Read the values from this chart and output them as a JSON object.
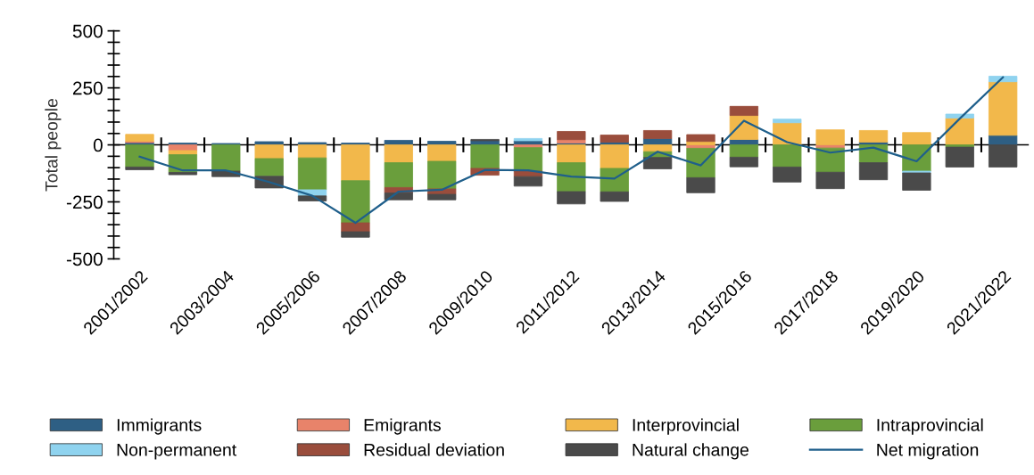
{
  "chart_data": {
    "type": "bar",
    "stacked": true,
    "ylabel": "Total people",
    "categories": [
      "2001/2002",
      null,
      "2003/2004",
      null,
      "2005/2006",
      null,
      "2007/2008",
      null,
      "2009/2010",
      null,
      "2011/2012",
      null,
      "2013/2014",
      null,
      "2015/2016",
      null,
      "2017/2018",
      null,
      "2019/2020",
      null,
      "2021/2022"
    ],
    "series": [
      {
        "name": "Immigrants",
        "color": "#2e5f84",
        "values": [
          10,
          8,
          6,
          14,
          10,
          8,
          20,
          16,
          18,
          18,
          8,
          12,
          28,
          0,
          24,
          0,
          0,
          12,
          0,
          0,
          42
        ]
      },
      {
        "name": "Emigrants",
        "color": "#e8836a",
        "values": [
          6,
          -25,
          0,
          0,
          0,
          0,
          0,
          0,
          0,
          -12,
          15,
          0,
          0,
          -15,
          0,
          0,
          -14,
          0,
          0,
          0,
          0
        ]
      },
      {
        "name": "Interprovincial",
        "color": "#f2b84b",
        "values": [
          30,
          -18,
          0,
          -60,
          -57,
          -157,
          -78,
          -72,
          0,
          0,
          -78,
          -103,
          -30,
          15,
          105,
          97,
          66,
          51,
          54,
          118,
          235
        ]
      },
      {
        "name": "Intraprovincial",
        "color": "#6a9e3c",
        "values": [
          -97,
          -78,
          -115,
          -78,
          -140,
          -185,
          -109,
          -121,
          -103,
          -103,
          -127,
          -103,
          -25,
          -129,
          -54,
          -97,
          -106,
          -78,
          -115,
          -10,
          0
        ]
      },
      {
        "name": "Non-permanent",
        "color": "#8fd3ef",
        "values": [
          0,
          0,
          0,
          0,
          -27,
          0,
          0,
          0,
          0,
          10,
          0,
          0,
          0,
          0,
          0,
          16,
          0,
          0,
          -8,
          17,
          24
        ]
      },
      {
        "name": "Residual deviation",
        "color": "#9a4d3c",
        "values": [
          0,
          0,
          0,
          0,
          0,
          -39,
          -24,
          -24,
          -30,
          -24,
          36,
          31,
          35,
          30,
          40,
          0,
          0,
          0,
          0,
          0,
          0
        ]
      },
      {
        "name": "Natural change",
        "color": "#4a4a4a",
        "values": [
          -12,
          -10,
          -24,
          -51,
          -22,
          -24,
          -30,
          -24,
          6,
          -42,
          -54,
          -42,
          -50,
          -66,
          -42,
          -66,
          -72,
          -75,
          -76,
          -87,
          -97
        ]
      },
      {
        "name": "Net migration",
        "type": "line",
        "color": "#1f5f8b",
        "values": [
          -52,
          -112,
          -112,
          -163,
          -223,
          -342,
          -205,
          -197,
          -110,
          -112,
          -139,
          -148,
          -30,
          -90,
          106,
          12,
          -34,
          -12,
          -72,
          115,
          296
        ]
      }
    ],
    "ylim": [
      -500,
      500
    ],
    "yticks": [
      -500,
      {
        "value": -450,
        "label": null
      },
      {
        "value": -400,
        "label": null
      },
      {
        "value": -350,
        "label": null
      },
      {
        "value": -300,
        "label": null
      },
      -250,
      {
        "value": -200,
        "label": null
      },
      {
        "value": -150,
        "label": null
      },
      {
        "value": -100,
        "label": null
      },
      {
        "value": -50,
        "label": null
      },
      0,
      {
        "value": 50,
        "label": null
      },
      {
        "value": 100,
        "label": null
      },
      {
        "value": 150,
        "label": null
      },
      {
        "value": 200,
        "label": null
      },
      250,
      {
        "value": 300,
        "label": null
      },
      {
        "value": 350,
        "label": null
      },
      {
        "value": 400,
        "label": null
      },
      {
        "value": 450,
        "label": null
      },
      500
    ],
    "ref_lines": [
      {
        "axis": "y",
        "value": 0,
        "color": "#000000"
      }
    ],
    "legend": "bottom",
    "grid": false
  }
}
